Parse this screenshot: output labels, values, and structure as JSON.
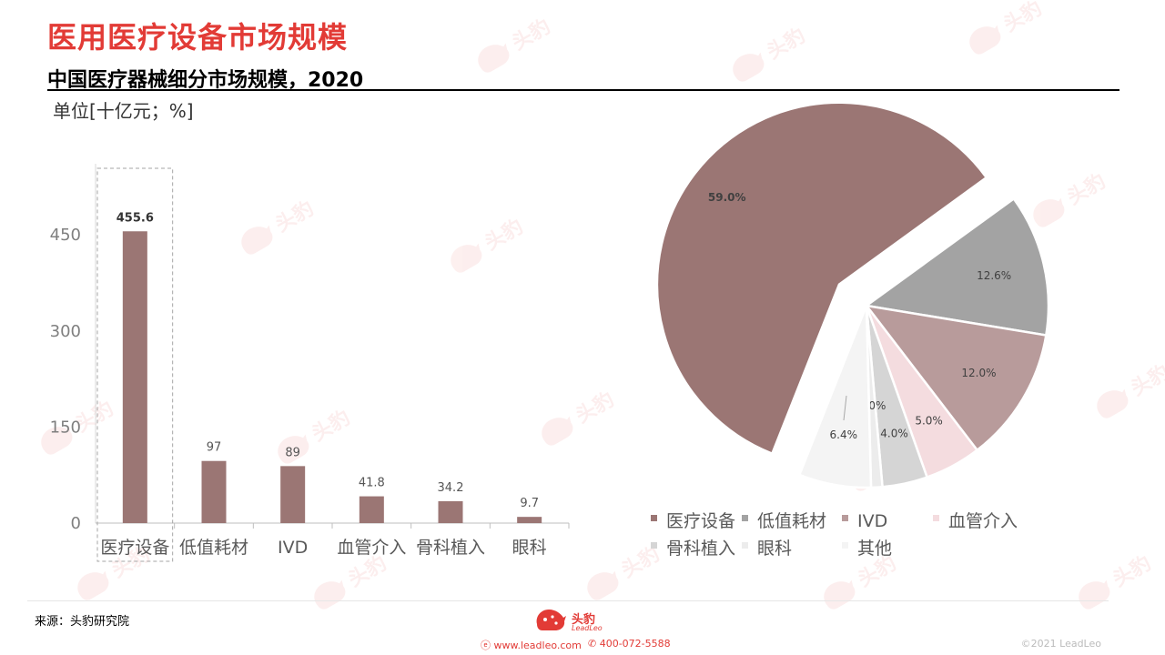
{
  "header": {
    "title": "医用医疗设备市场规模",
    "subtitle": "中国医疗器械细分市场规模，2020",
    "unit": "单位[十亿元；%]"
  },
  "footer": {
    "source": "来源：头豹研究院",
    "brand_name": "头豹",
    "brand_sub": "LeadLeo",
    "website": "www.leadleo.com",
    "phone": "400-072-5588",
    "copyright": "©2021 LeadLeo"
  },
  "colors": {
    "title": "#e23b36",
    "bar": "#9b7674",
    "slices": [
      "#9b7674",
      "#a3a3a3",
      "#b89b9b",
      "#f4dcdf",
      "#d5d5d5",
      "#ececec",
      "#f4f4f4"
    ]
  },
  "chart_data": [
    {
      "type": "bar",
      "categories": [
        "医疗设备",
        "低值耗材",
        "IVD",
        "血管介入",
        "骨科植入",
        "眼科"
      ],
      "values": [
        455.6,
        97,
        89,
        41.8,
        34.2,
        9.7
      ],
      "data_labels": [
        "455.6",
        "97",
        "89",
        "41.8",
        "34.2",
        "9.7"
      ],
      "y_ticks": [
        "0",
        "150",
        "300",
        "450"
      ],
      "ylim": [
        0,
        500
      ],
      "highlight_category": "医疗设备",
      "grid": false
    },
    {
      "type": "pie",
      "labels": [
        "医疗设备",
        "低值耗材",
        "IVD",
        "血管介入",
        "骨科植入",
        "眼科",
        "其他"
      ],
      "values": [
        59.0,
        12.6,
        12.0,
        5.0,
        4.0,
        1.0,
        6.4
      ],
      "data_labels": [
        "59.0%",
        "12.6%",
        "12.0%",
        "5.0%",
        "4.0%",
        "1.0%",
        "6.4%"
      ],
      "exploded": "医疗设备",
      "legend_position": "bottom"
    }
  ]
}
